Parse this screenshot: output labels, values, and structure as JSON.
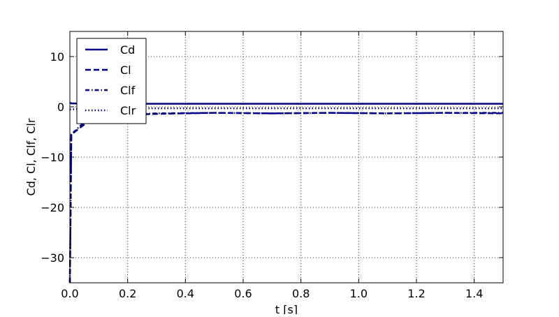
{
  "chart_data": {
    "type": "line",
    "x": [
      0,
      0.005,
      0.05,
      0.1,
      0.2,
      0.3,
      0.5,
      0.7,
      0.9,
      1.1,
      1.3,
      1.5
    ],
    "series": [
      {
        "name": "Cd",
        "color": "#000080",
        "dash": "solid",
        "values": [
          0.8,
          0.7,
          0.6,
          0.6,
          0.6,
          0.6,
          0.6,
          0.6,
          0.6,
          0.6,
          0.6,
          0.6
        ]
      },
      {
        "name": "Cl",
        "color": "#000080",
        "dash": "dashed",
        "values": [
          -35,
          -5.5,
          -3.5,
          -2,
          -1.6,
          -1.4,
          -1.2,
          -1.3,
          -1.2,
          -1.3,
          -1.2,
          -1.3
        ]
      },
      {
        "name": "Clf",
        "color": "#000080",
        "dash": "dashdot",
        "values": [
          -35,
          -5.5,
          -3,
          -1.8,
          -1.5,
          -1.3,
          -1.2,
          -1.3,
          -1.2,
          -1.3,
          -1.2,
          -1.2
        ]
      },
      {
        "name": "Clr",
        "color": "#000080",
        "dash": "dotted",
        "values": [
          -0.5,
          -0.5,
          -0.4,
          -0.3,
          -0.3,
          -0.3,
          -0.3,
          -0.3,
          -0.3,
          -0.3,
          -0.3,
          -0.3
        ]
      }
    ],
    "xlabel": "t [s]",
    "ylabel": "Cd, Cl, Clf, Clr",
    "xlim": [
      0,
      1.5
    ],
    "xticks": [
      {
        "value": 0,
        "label": "0.0"
      },
      0.2,
      0.4,
      0.6,
      0.8,
      {
        "value": 1,
        "label": "1.0"
      },
      1.2,
      1.4
    ],
    "ylim": [
      -35,
      15
    ],
    "yticks": [
      {
        "value": -30,
        "label": "−30"
      },
      {
        "value": -20,
        "label": "−20"
      },
      {
        "value": -10,
        "label": "−10"
      },
      0,
      10
    ],
    "grid": true,
    "legend": "upper left"
  }
}
